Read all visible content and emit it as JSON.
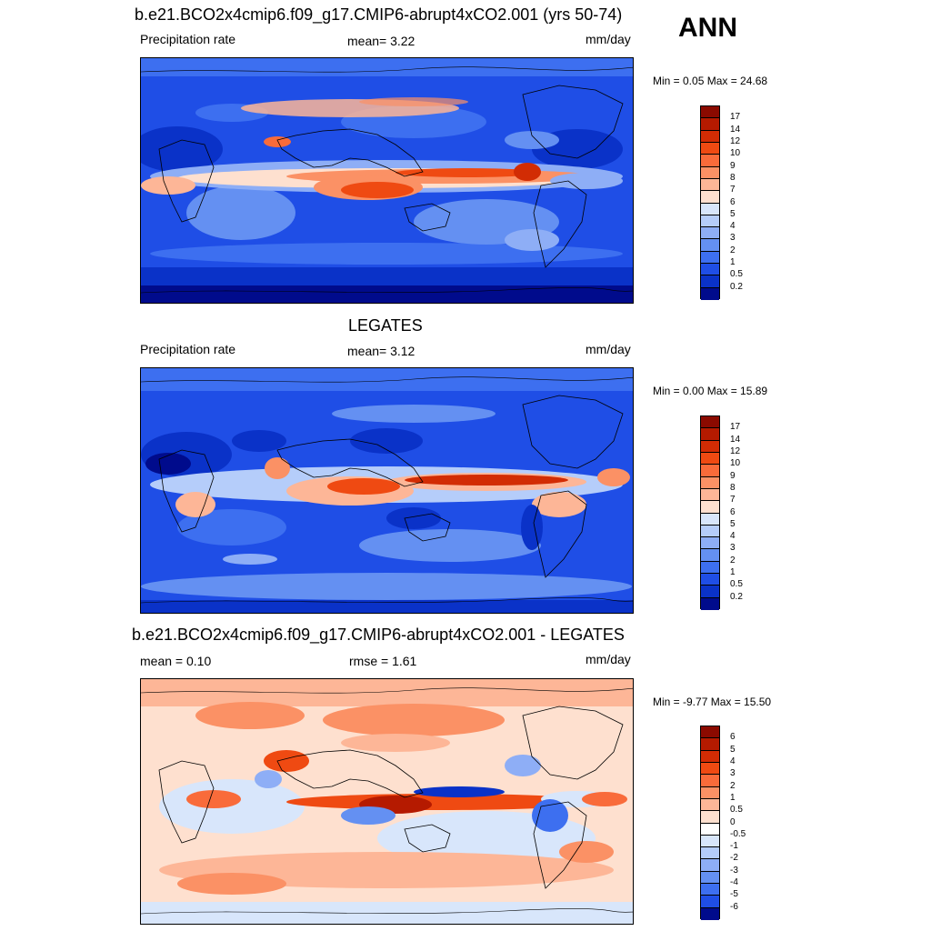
{
  "season": "ANN",
  "panels": [
    {
      "title": "b.e21.BCO2x4cmip6.f09_g17.CMIP6-abrupt4xCO2.001 (yrs 50-74)",
      "left_label": "Precipitation rate",
      "center_label": "mean=   3.22",
      "units": "mm/day",
      "minmax": "Min =   0.05 Max =  24.68",
      "colorbar": {
        "labels": [
          "17",
          "14",
          "12",
          "10",
          "9",
          "8",
          "7",
          "6",
          "5",
          "4",
          "3",
          "2",
          "1",
          "0.5",
          "0.2"
        ],
        "colors": [
          "#8b0a00",
          "#b51a00",
          "#d22c04",
          "#ef4a12",
          "#f96b3a",
          "#fb9165",
          "#fdb697",
          "#fee0cf",
          "#d8e6fb",
          "#b5cdfa",
          "#8eaef6",
          "#6490f2",
          "#3d6ff0",
          "#1f4ee6",
          "#0a32c8",
          "#000b8c"
        ]
      },
      "map_style": "precip_model"
    },
    {
      "title": "LEGATES",
      "left_label": "Precipitation rate",
      "center_label": "mean=   3.12",
      "units": "mm/day",
      "minmax": "Min =   0.00 Max =  15.89",
      "colorbar": {
        "labels": [
          "17",
          "14",
          "12",
          "10",
          "9",
          "8",
          "7",
          "6",
          "5",
          "4",
          "3",
          "2",
          "1",
          "0.5",
          "0.2"
        ],
        "colors": [
          "#8b0a00",
          "#b51a00",
          "#d22c04",
          "#ef4a12",
          "#f96b3a",
          "#fb9165",
          "#fdb697",
          "#fee0cf",
          "#d8e6fb",
          "#b5cdfa",
          "#8eaef6",
          "#6490f2",
          "#3d6ff0",
          "#1f4ee6",
          "#0a32c8",
          "#000b8c"
        ]
      },
      "map_style": "precip_obs"
    },
    {
      "title": "b.e21.BCO2x4cmip6.f09_g17.CMIP6-abrupt4xCO2.001 - LEGATES",
      "left_label": "mean =   0.10",
      "center_label": "rmse =   1.61",
      "units": "mm/day",
      "minmax": "Min =  -9.77 Max =  15.50",
      "colorbar": {
        "labels": [
          "6",
          "5",
          "4",
          "3",
          "2",
          "1",
          "0.5",
          "0",
          "-0.5",
          "-1",
          "-2",
          "-3",
          "-4",
          "-5",
          "-6"
        ],
        "colors": [
          "#8b0a00",
          "#b51a00",
          "#d22c04",
          "#ef4a12",
          "#f96b3a",
          "#fb9165",
          "#fdb697",
          "#fee0cf",
          "#ffffff",
          "#d8e6fb",
          "#b5cdfa",
          "#8eaef6",
          "#6490f2",
          "#3d6ff0",
          "#1f4ee6",
          "#000b8c"
        ]
      },
      "map_style": "diff"
    }
  ]
}
